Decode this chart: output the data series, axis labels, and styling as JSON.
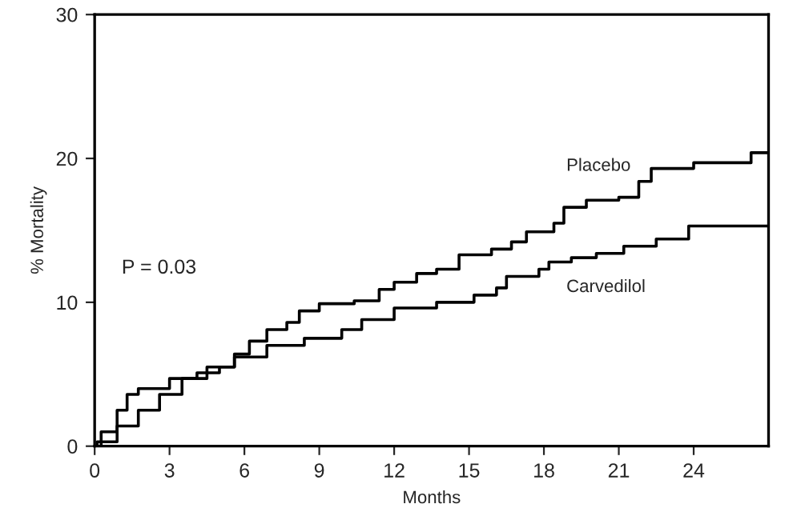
{
  "chart_data": {
    "type": "step",
    "xlabel": "Months",
    "ylabel": "% Mortality",
    "xlim": [
      0,
      27
    ],
    "xticks": [
      0,
      3,
      6,
      9,
      12,
      15,
      18,
      21,
      24
    ],
    "ylim": [
      0,
      30
    ],
    "yticks": [
      0,
      10,
      20,
      30
    ],
    "grid": false,
    "legend": false,
    "annotations": [
      "P = 0.03"
    ],
    "series": [
      {
        "name": "Placebo",
        "color": "#000000",
        "x": [
          0,
          0.26,
          0.9,
          1.3,
          1.75,
          2.2,
          3.0,
          4.1,
          5.0,
          5.6,
          6.2,
          6.9,
          7.7,
          8.2,
          9.0,
          10.4,
          11.4,
          12.0,
          12.9,
          13.7,
          14.6,
          15.9,
          16.7,
          17.3,
          18.4,
          18.8,
          19.7,
          21.0,
          21.8,
          22.3,
          24.0,
          26.3,
          27
        ],
        "values": [
          0,
          1.0,
          2.5,
          3.6,
          4.0,
          4.0,
          4.7,
          5.1,
          5.5,
          6.4,
          7.3,
          8.1,
          8.6,
          9.4,
          9.9,
          10.1,
          10.9,
          11.4,
          12.0,
          12.3,
          13.3,
          13.7,
          14.2,
          14.9,
          15.5,
          16.6,
          17.1,
          17.3,
          18.4,
          19.3,
          19.7,
          20.4,
          20.4
        ]
      },
      {
        "name": "Carvedilol",
        "color": "#000000",
        "x": [
          0,
          0.1,
          0.9,
          1.75,
          2.6,
          3.5,
          4.5,
          5.6,
          6.9,
          8.4,
          9.9,
          10.7,
          12.0,
          13.7,
          15.2,
          16.1,
          16.5,
          17.8,
          18.2,
          19.1,
          20.1,
          21.2,
          22.5,
          23.8,
          27
        ],
        "values": [
          0,
          0.3,
          1.4,
          2.5,
          3.6,
          4.7,
          5.5,
          6.2,
          7.0,
          7.5,
          8.1,
          8.8,
          9.6,
          10.0,
          10.5,
          11.0,
          11.8,
          12.3,
          12.8,
          13.1,
          13.4,
          13.9,
          14.4,
          15.3,
          15.3
        ]
      }
    ]
  }
}
